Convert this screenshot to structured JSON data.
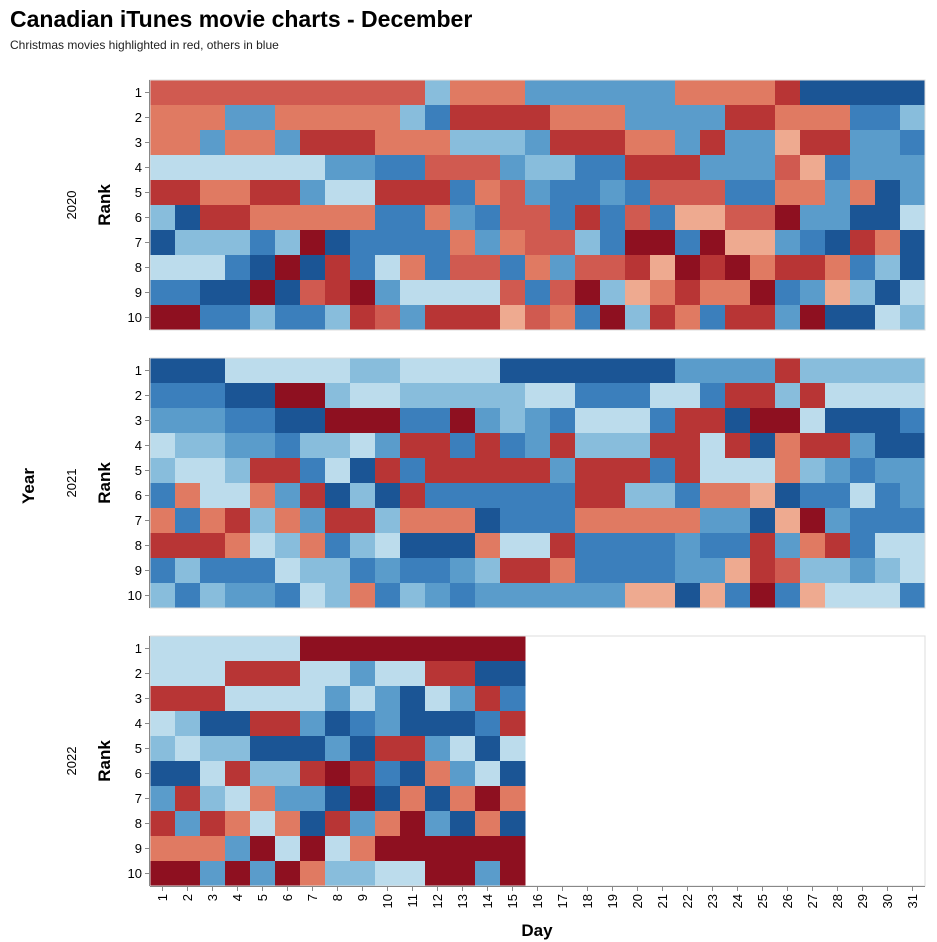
{
  "chart_data": {
    "type": "heatmap",
    "title": "Canadian iTunes movie charts - December",
    "subtitle": "Christmas movies highlighted in red, others in blue",
    "xlabel": "Day",
    "ylabel": "Rank",
    "facet_label": "Year",
    "days": [
      1,
      2,
      3,
      4,
      5,
      6,
      7,
      8,
      9,
      10,
      11,
      12,
      13,
      14,
      15,
      16,
      17,
      18,
      19,
      20,
      21,
      22,
      23,
      24,
      25,
      26,
      27,
      28,
      29,
      30,
      31
    ],
    "ranks": [
      1,
      2,
      3,
      4,
      5,
      6,
      7,
      8,
      9,
      10
    ],
    "color_legend": {
      "R": "Christmas movie",
      "B": "other movie"
    },
    "palette": {
      "R1": "#eeaa90",
      "R2": "#e07a62",
      "R3": "#d05a50",
      "R4": "#b83535",
      "R5": "#8e1020",
      "B1": "#bcdcec",
      "B2": "#88bddc",
      "B3": "#5a9ccb",
      "B4": "#3b7fbc",
      "B5": "#1b5595",
      "E": null
    },
    "facets": [
      {
        "year": "2020",
        "grid": [
          [
            "R3",
            "R3",
            "R3",
            "R3",
            "R3",
            "R3",
            "R3",
            "R3",
            "R3",
            "R3",
            "R3",
            "B2",
            "R2",
            "R2",
            "R2",
            "B3",
            "B3",
            "B3",
            "B3",
            "B3",
            "B3",
            "R2",
            "R2",
            "R2",
            "R2",
            "R4",
            "B5",
            "B5",
            "B5",
            "B5",
            "B5"
          ],
          [
            "R2",
            "R2",
            "R2",
            "B3",
            "B3",
            "R2",
            "R2",
            "R2",
            "R2",
            "R2",
            "B2",
            "B4",
            "R4",
            "R4",
            "R4",
            "R4",
            "R2",
            "R2",
            "R2",
            "B3",
            "B3",
            "B3",
            "B3",
            "R4",
            "R4",
            "R2",
            "R2",
            "R2",
            "B4",
            "B4",
            "B2"
          ],
          [
            "R2",
            "R2",
            "B3",
            "R2",
            "R2",
            "B3",
            "R4",
            "R4",
            "R4",
            "R2",
            "R2",
            "R2",
            "B2",
            "B2",
            "B2",
            "B3",
            "R4",
            "R4",
            "R4",
            "R2",
            "R2",
            "B3",
            "R4",
            "B3",
            "B3",
            "R1",
            "R4",
            "R4",
            "B3",
            "B3",
            "B4"
          ],
          [
            "B1",
            "B1",
            "B1",
            "B1",
            "B1",
            "B1",
            "B1",
            "B3",
            "B3",
            "B4",
            "B4",
            "R3",
            "R3",
            "R3",
            "B3",
            "B2",
            "B2",
            "B4",
            "B4",
            "R4",
            "R4",
            "R4",
            "B3",
            "B3",
            "B3",
            "R3",
            "R1",
            "B4",
            "B3",
            "B3",
            "B3"
          ],
          [
            "R4",
            "R4",
            "R2",
            "R2",
            "R4",
            "R4",
            "B3",
            "B1",
            "B1",
            "R4",
            "R4",
            "R4",
            "B4",
            "R2",
            "R3",
            "B3",
            "B4",
            "B4",
            "B3",
            "B4",
            "R3",
            "R3",
            "R3",
            "B4",
            "B4",
            "R2",
            "R2",
            "B3",
            "R2",
            "B5",
            "B3"
          ],
          [
            "B2",
            "B5",
            "R4",
            "R4",
            "R2",
            "R2",
            "R2",
            "R2",
            "R2",
            "B4",
            "B4",
            "R2",
            "B3",
            "B4",
            "R3",
            "R3",
            "B4",
            "R4",
            "B4",
            "R3",
            "B4",
            "R1",
            "R1",
            "R3",
            "R3",
            "R5",
            "B3",
            "B3",
            "B5",
            "B5",
            "B1"
          ],
          [
            "B5",
            "B2",
            "B2",
            "B2",
            "B4",
            "B2",
            "R5",
            "B5",
            "B4",
            "B4",
            "B4",
            "B4",
            "R2",
            "B3",
            "R2",
            "R3",
            "R3",
            "B2",
            "B4",
            "R5",
            "R5",
            "B4",
            "R5",
            "R1",
            "R1",
            "B3",
            "B4",
            "B5",
            "R4",
            "R2",
            "B5"
          ],
          [
            "B1",
            "B1",
            "B1",
            "B4",
            "B5",
            "R5",
            "B5",
            "R4",
            "B4",
            "B1",
            "R2",
            "B4",
            "R3",
            "R3",
            "B4",
            "R2",
            "B3",
            "R3",
            "R3",
            "R4",
            "R1",
            "R5",
            "R4",
            "R5",
            "R2",
            "R4",
            "R4",
            "R2",
            "B4",
            "B2",
            "B5"
          ],
          [
            "B4",
            "B4",
            "B5",
            "B5",
            "R5",
            "B5",
            "R3",
            "R4",
            "R5",
            "B3",
            "B1",
            "B1",
            "B1",
            "B1",
            "R3",
            "B4",
            "R3",
            "R5",
            "B2",
            "R1",
            "R2",
            "R4",
            "R2",
            "R2",
            "R5",
            "B4",
            "B3",
            "R1",
            "B2",
            "B5",
            "B1"
          ],
          [
            "R5",
            "R5",
            "B4",
            "B4",
            "B2",
            "B4",
            "B4",
            "B2",
            "R4",
            "R3",
            "B3",
            "R4",
            "R4",
            "R4",
            "R1",
            "R3",
            "R2",
            "B4",
            "R5",
            "B2",
            "R4",
            "R2",
            "B4",
            "R4",
            "R4",
            "B3",
            "R5",
            "B5",
            "B5",
            "B1",
            "B2"
          ]
        ]
      },
      {
        "year": "2021",
        "grid": [
          [
            "B5",
            "B5",
            "B5",
            "B1",
            "B1",
            "B1",
            "B1",
            "B1",
            "B2",
            "B2",
            "B1",
            "B1",
            "B1",
            "B1",
            "B5",
            "B5",
            "B5",
            "B5",
            "B5",
            "B5",
            "B5",
            "B3",
            "B3",
            "B3",
            "B3",
            "R4",
            "B2",
            "B2",
            "B2",
            "B2",
            "B2"
          ],
          [
            "B4",
            "B4",
            "B4",
            "B5",
            "B5",
            "R5",
            "R5",
            "B2",
            "B1",
            "B1",
            "B2",
            "B2",
            "B2",
            "B2",
            "B2",
            "B1",
            "B1",
            "B4",
            "B4",
            "B4",
            "B1",
            "B1",
            "B4",
            "R4",
            "R4",
            "B2",
            "R4",
            "B1",
            "B1",
            "B1",
            "B1"
          ],
          [
            "B3",
            "B3",
            "B3",
            "B4",
            "B4",
            "B5",
            "B5",
            "R5",
            "R5",
            "R5",
            "B4",
            "B4",
            "R5",
            "B3",
            "B2",
            "B3",
            "B4",
            "B1",
            "B1",
            "B1",
            "B4",
            "R4",
            "R4",
            "B5",
            "R5",
            "R5",
            "B1",
            "B5",
            "B5",
            "B5",
            "B4"
          ],
          [
            "B1",
            "B2",
            "B2",
            "B3",
            "B3",
            "B4",
            "B2",
            "B2",
            "B1",
            "B3",
            "R4",
            "R4",
            "B4",
            "R4",
            "B4",
            "B3",
            "R4",
            "B2",
            "B2",
            "B2",
            "R4",
            "R4",
            "B1",
            "R4",
            "B5",
            "R2",
            "R4",
            "R4",
            "B3",
            "B5",
            "B5"
          ],
          [
            "B2",
            "B1",
            "B1",
            "B2",
            "R4",
            "R4",
            "B4",
            "B1",
            "B5",
            "R4",
            "B4",
            "R4",
            "R4",
            "R4",
            "R4",
            "R4",
            "B3",
            "R4",
            "R4",
            "R4",
            "B4",
            "R4",
            "B1",
            "B1",
            "B1",
            "R2",
            "B2",
            "B3",
            "B4",
            "B3",
            "B3"
          ],
          [
            "B4",
            "R2",
            "B1",
            "B1",
            "R2",
            "B3",
            "R4",
            "B5",
            "B2",
            "B5",
            "R4",
            "B4",
            "B4",
            "B4",
            "B4",
            "B4",
            "B4",
            "R4",
            "R4",
            "B2",
            "B2",
            "B4",
            "R2",
            "R2",
            "R1",
            "B5",
            "B4",
            "B4",
            "B1",
            "B4",
            "B3"
          ],
          [
            "R2",
            "B4",
            "R2",
            "R4",
            "B2",
            "R2",
            "B3",
            "R4",
            "R4",
            "B2",
            "R2",
            "R2",
            "R2",
            "B5",
            "B4",
            "B4",
            "B4",
            "R2",
            "R2",
            "R2",
            "R2",
            "R2",
            "B3",
            "B3",
            "B5",
            "R1",
            "R5",
            "B3",
            "B4",
            "B4",
            "B4"
          ],
          [
            "R4",
            "R4",
            "R4",
            "R2",
            "B1",
            "B2",
            "R2",
            "B4",
            "B2",
            "B1",
            "B5",
            "B5",
            "B5",
            "R2",
            "B1",
            "B1",
            "R4",
            "B4",
            "B4",
            "B4",
            "B4",
            "B3",
            "B4",
            "B4",
            "R4",
            "B3",
            "R2",
            "R4",
            "B4",
            "B1",
            "B1"
          ],
          [
            "B4",
            "B2",
            "B4",
            "B4",
            "B4",
            "B1",
            "B2",
            "B2",
            "B4",
            "B3",
            "B4",
            "B4",
            "B3",
            "B2",
            "R4",
            "R4",
            "R2",
            "B4",
            "B4",
            "B4",
            "B4",
            "B3",
            "B3",
            "R1",
            "R4",
            "R3",
            "B2",
            "B2",
            "B3",
            "B2",
            "B1"
          ],
          [
            "B2",
            "B4",
            "B2",
            "B3",
            "B3",
            "B4",
            "B1",
            "B2",
            "R2",
            "B4",
            "B2",
            "B3",
            "B4",
            "B3",
            "B3",
            "B3",
            "B3",
            "B3",
            "B3",
            "R1",
            "R1",
            "B5",
            "R1",
            "B4",
            "R5",
            "B4",
            "R1",
            "B1",
            "B1",
            "B1",
            "B4"
          ]
        ]
      },
      {
        "year": "2022",
        "grid": [
          [
            "B1",
            "B1",
            "B1",
            "B1",
            "B1",
            "B1",
            "R5",
            "R5",
            "R5",
            "R5",
            "R5",
            "R5",
            "R5",
            "R5",
            "R5",
            "E",
            "E",
            "E",
            "E",
            "E",
            "E",
            "E",
            "E",
            "E",
            "E",
            "E",
            "E",
            "E",
            "E",
            "E",
            "E"
          ],
          [
            "B1",
            "B1",
            "B1",
            "R4",
            "R4",
            "R4",
            "B1",
            "B1",
            "B3",
            "B1",
            "B1",
            "R4",
            "R4",
            "B5",
            "B5",
            "E",
            "E",
            "E",
            "E",
            "E",
            "E",
            "E",
            "E",
            "E",
            "E",
            "E",
            "E",
            "E",
            "E",
            "E",
            "E"
          ],
          [
            "R4",
            "R4",
            "R4",
            "B1",
            "B1",
            "B1",
            "B1",
            "B3",
            "B1",
            "B3",
            "B5",
            "B1",
            "B3",
            "R4",
            "B4",
            "E",
            "E",
            "E",
            "E",
            "E",
            "E",
            "E",
            "E",
            "E",
            "E",
            "E",
            "E",
            "E",
            "E",
            "E",
            "E"
          ],
          [
            "B1",
            "B2",
            "B5",
            "B5",
            "R4",
            "R4",
            "B3",
            "B5",
            "B4",
            "B3",
            "B5",
            "B5",
            "B5",
            "B4",
            "R4",
            "E",
            "E",
            "E",
            "E",
            "E",
            "E",
            "E",
            "E",
            "E",
            "E",
            "E",
            "E",
            "E",
            "E",
            "E",
            "E"
          ],
          [
            "B2",
            "B1",
            "B2",
            "B2",
            "B5",
            "B5",
            "B5",
            "B3",
            "B5",
            "R4",
            "R4",
            "B3",
            "B1",
            "B5",
            "B1",
            "E",
            "E",
            "E",
            "E",
            "E",
            "E",
            "E",
            "E",
            "E",
            "E",
            "E",
            "E",
            "E",
            "E",
            "E",
            "E"
          ],
          [
            "B5",
            "B5",
            "B1",
            "R4",
            "B2",
            "B2",
            "R4",
            "R5",
            "R4",
            "B4",
            "B5",
            "R2",
            "B3",
            "B1",
            "B5",
            "E",
            "E",
            "E",
            "E",
            "E",
            "E",
            "E",
            "E",
            "E",
            "E",
            "E",
            "E",
            "E",
            "E",
            "E",
            "E"
          ],
          [
            "B3",
            "R4",
            "B2",
            "B1",
            "R2",
            "B3",
            "B3",
            "B5",
            "R5",
            "B5",
            "R2",
            "B5",
            "R2",
            "R5",
            "R2",
            "E",
            "E",
            "E",
            "E",
            "E",
            "E",
            "E",
            "E",
            "E",
            "E",
            "E",
            "E",
            "E",
            "E",
            "E",
            "E"
          ],
          [
            "R4",
            "B3",
            "R4",
            "R2",
            "B1",
            "R2",
            "B5",
            "R4",
            "B3",
            "R2",
            "R5",
            "B3",
            "B5",
            "R2",
            "B5",
            "E",
            "E",
            "E",
            "E",
            "E",
            "E",
            "E",
            "E",
            "E",
            "E",
            "E",
            "E",
            "E",
            "E",
            "E",
            "E"
          ],
          [
            "R2",
            "R2",
            "R2",
            "B3",
            "R5",
            "B1",
            "R5",
            "B1",
            "R2",
            "R5",
            "R5",
            "R5",
            "R5",
            "R5",
            "R5",
            "E",
            "E",
            "E",
            "E",
            "E",
            "E",
            "E",
            "E",
            "E",
            "E",
            "E",
            "E",
            "E",
            "E",
            "E",
            "E"
          ],
          [
            "R5",
            "R5",
            "B3",
            "R5",
            "B3",
            "R5",
            "R2",
            "B2",
            "B2",
            "B1",
            "B1",
            "R5",
            "R5",
            "B3",
            "R5",
            "E",
            "E",
            "E",
            "E",
            "E",
            "E",
            "E",
            "E",
            "E",
            "E",
            "E",
            "E",
            "E",
            "E",
            "E",
            "E"
          ]
        ]
      }
    ]
  }
}
